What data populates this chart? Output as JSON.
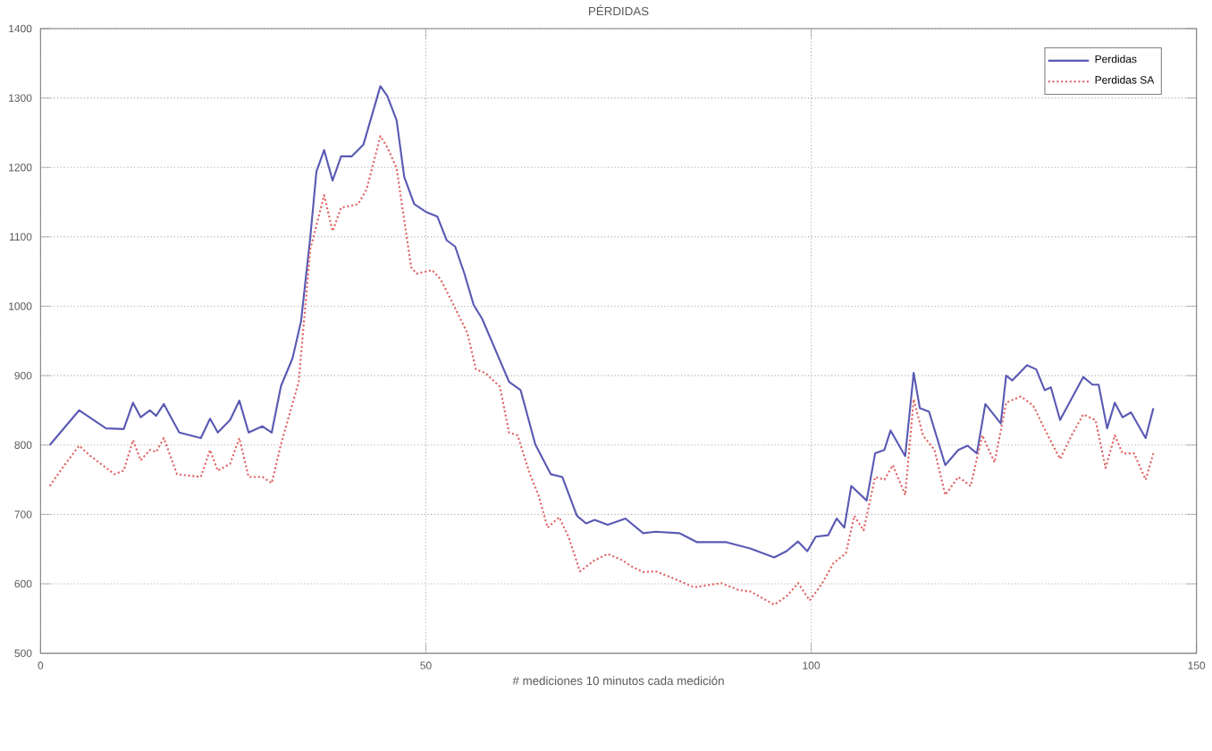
{
  "chart_data": {
    "type": "line",
    "title": "PÉRDIDAS",
    "xlabel": "# mediciones 10 minutos cada medición",
    "xlim": [
      0,
      150
    ],
    "xticks": [
      0,
      50,
      100,
      150
    ],
    "ylim": [
      500,
      1400
    ],
    "yticks": [
      500,
      600,
      700,
      800,
      900,
      1000,
      1100,
      1200,
      1300,
      1400
    ],
    "grid": true,
    "legend": "top right",
    "series": [
      {
        "name": "Perdidas",
        "color": "#5a5ab4",
        "line_style": "solid",
        "x": [
          1.2,
          5,
          8.5,
          10.8,
          12,
          13,
          14.2,
          15,
          16,
          18,
          20.8,
          22,
          23,
          24.6,
          25.8,
          27,
          28.8,
          30,
          31.2,
          32.7,
          33.8,
          35,
          35.8,
          36.8,
          37.9,
          39,
          40.4,
          41.9,
          44.1,
          45,
          46.2,
          47.2,
          48.5,
          50,
          51.5,
          52.7,
          53.8,
          55,
          56.2,
          57.3,
          60.8,
          62.3,
          64.2,
          66.2,
          67.7,
          69.6,
          70.8,
          71.9,
          73.6,
          75.9,
          78.2,
          79.8,
          82.9,
          85.2,
          89,
          92.1,
          95.2,
          96.8,
          98.3,
          99.5,
          100.6,
          102.2,
          103.3,
          104.3,
          105.2,
          107.2,
          108.3,
          109.5,
          110.3,
          112.2,
          113.3,
          114.1,
          115.3,
          117.4,
          119.1,
          120.3,
          121.5,
          122.6,
          124.6,
          125.3,
          126.1,
          128,
          129.2,
          130.3,
          131.1,
          132.3,
          135.3,
          136.5,
          137.3,
          138.4,
          139.4,
          140.4,
          141.5,
          143.4,
          144.4
        ],
        "values": [
          800,
          850,
          824,
          823,
          861,
          840,
          850,
          842,
          859,
          818,
          810,
          838,
          818,
          836,
          864,
          818,
          827,
          818,
          885,
          925,
          978,
          1099,
          1194,
          1225,
          1181,
          1216,
          1216,
          1233,
          1317,
          1303,
          1268,
          1186,
          1147,
          1136,
          1129,
          1095,
          1086,
          1047,
          1002,
          982,
          891,
          879,
          801,
          758,
          754,
          698,
          687,
          692,
          685,
          694,
          673,
          675,
          673,
          660,
          660,
          651,
          638,
          647,
          661,
          647,
          668,
          670,
          694,
          681,
          741,
          720,
          788,
          793,
          821,
          784,
          904,
          853,
          848,
          771,
          793,
          799,
          788,
          859,
          831,
          900,
          893,
          915,
          909,
          879,
          883,
          836,
          898,
          887,
          887,
          824,
          861,
          840,
          847,
          810,
          853
        ]
      },
      {
        "name": "Perdidas SA",
        "color": "#e06464",
        "line_style": "dotted",
        "x": [
          1.2,
          3.1,
          5,
          6.5,
          9.6,
          10.8,
          12,
          13,
          14.2,
          15,
          16,
          17.7,
          20.8,
          22,
          23,
          24.6,
          25.8,
          27,
          28.8,
          30,
          31.2,
          33.5,
          35,
          36.8,
          37.9,
          39,
          41.2,
          42.3,
          44.1,
          45,
          46.2,
          48.1,
          48.8,
          50.8,
          51.9,
          53.5,
          55.4,
          56.5,
          57.7,
          59.6,
          60.8,
          61.9,
          63.5,
          64.6,
          65.8,
          67.3,
          68.5,
          70,
          71.9,
          73.6,
          75.5,
          76.7,
          78.2,
          79.8,
          82.1,
          84.8,
          88.3,
          90.6,
          92.1,
          95.2,
          96.8,
          98.3,
          99.8,
          101.4,
          102.9,
          104.5,
          105.6,
          106.8,
          108.3,
          109.5,
          110.6,
          112.2,
          113.3,
          114.5,
          116,
          117.4,
          119.1,
          120.7,
          122.2,
          123.8,
          125.3,
          127.2,
          128.8,
          130.7,
          132.3,
          133.8,
          135.3,
          136.9,
          138.2,
          139.4,
          140.4,
          141.9,
          143.4,
          144.4
        ],
        "values": [
          741,
          771,
          799,
          784,
          758,
          763,
          807,
          778,
          793,
          790,
          810,
          758,
          754,
          793,
          763,
          773,
          810,
          754,
          754,
          745,
          801,
          891,
          1082,
          1160,
          1108,
          1142,
          1147,
          1168,
          1245,
          1229,
          1199,
          1056,
          1047,
          1052,
          1039,
          1004,
          961,
          909,
          904,
          884,
          818,
          814,
          758,
          728,
          681,
          696,
          668,
          618,
          634,
          643,
          634,
          625,
          617,
          618,
          608,
          595,
          601,
          591,
          589,
          570,
          582,
          601,
          576,
          600,
          630,
          644,
          698,
          677,
          754,
          750,
          771,
          728,
          866,
          814,
          793,
          728,
          754,
          741,
          814,
          775,
          861,
          870,
          857,
          814,
          780,
          814,
          844,
          836,
          767,
          814,
          788,
          788,
          750,
          788
        ]
      }
    ]
  }
}
